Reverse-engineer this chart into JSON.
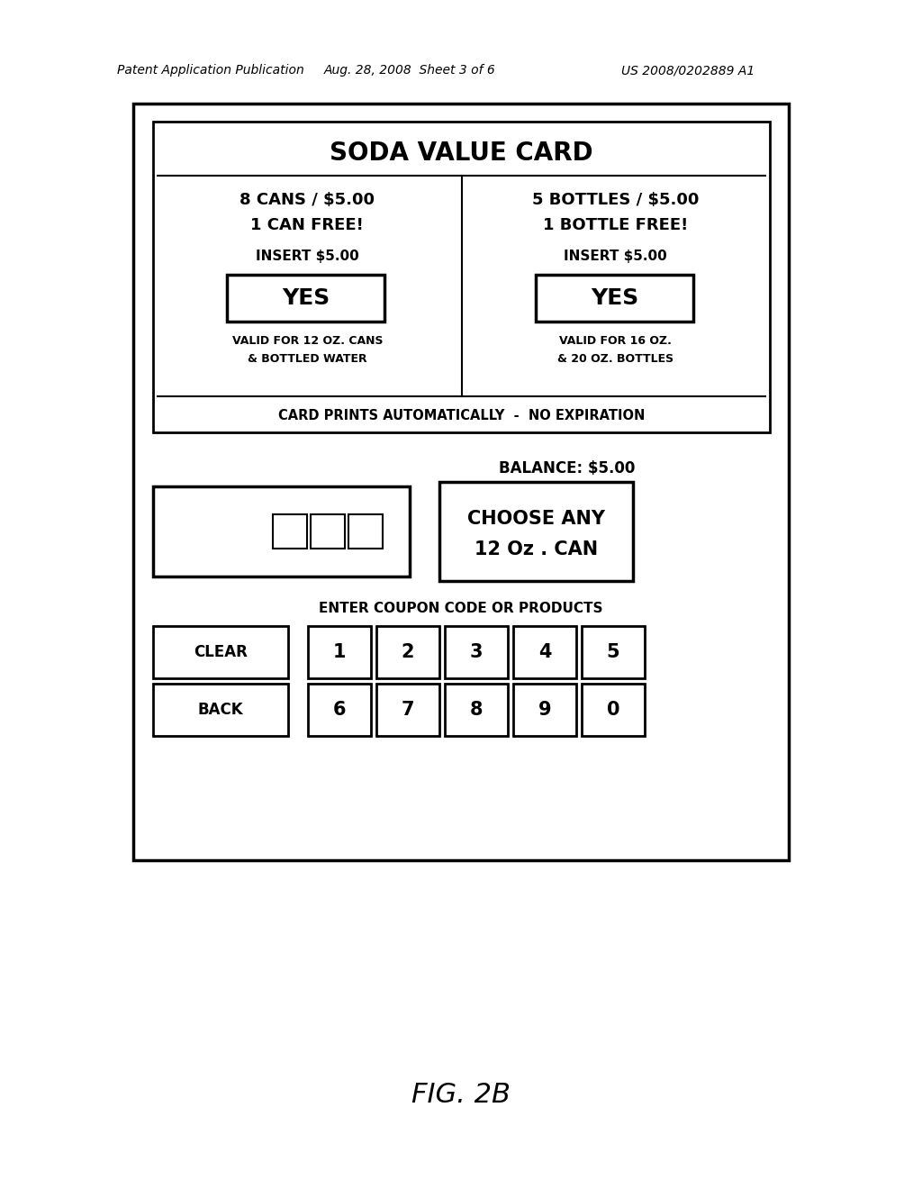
{
  "bg_color": "#ffffff",
  "header_text1": "Patent Application Publication",
  "header_text2": "Aug. 28, 2008  Sheet 3 of 6",
  "header_text3": "US 2008/0202889 A1",
  "figure_label": "FIG. 2B",
  "card_title": "SODA VALUE CARD",
  "left_col_line1": "8 CANS / $5.00",
  "left_col_line2": "1 CAN FREE!",
  "left_col_line3": "INSERT $5.00",
  "left_yes": "YES",
  "left_valid1": "VALID FOR 12 OZ. CANS",
  "left_valid2": "& BOTTLED WATER",
  "right_col_line1": "5 BOTTLES / $5.00",
  "right_col_line2": "1 BOTTLE FREE!",
  "right_col_line3": "INSERT $5.00",
  "right_yes": "YES",
  "right_valid1": "VALID FOR 16 OZ.",
  "right_valid2": "& 20 OZ. BOTTLES",
  "card_footer": "CARD PRINTS AUTOMATICALLY  -  NO EXPIRATION",
  "balance_text": "BALANCE: $5.00",
  "choose_line1": "CHOOSE ANY",
  "choose_line2": "12 Oz . CAN",
  "enter_text": "ENTER COUPON CODE OR PRODUCTS",
  "row1_keys": [
    "CLEAR",
    "1",
    "2",
    "3",
    "4",
    "5"
  ],
  "row2_keys": [
    "BACK",
    "6",
    "7",
    "8",
    "9",
    "0"
  ]
}
